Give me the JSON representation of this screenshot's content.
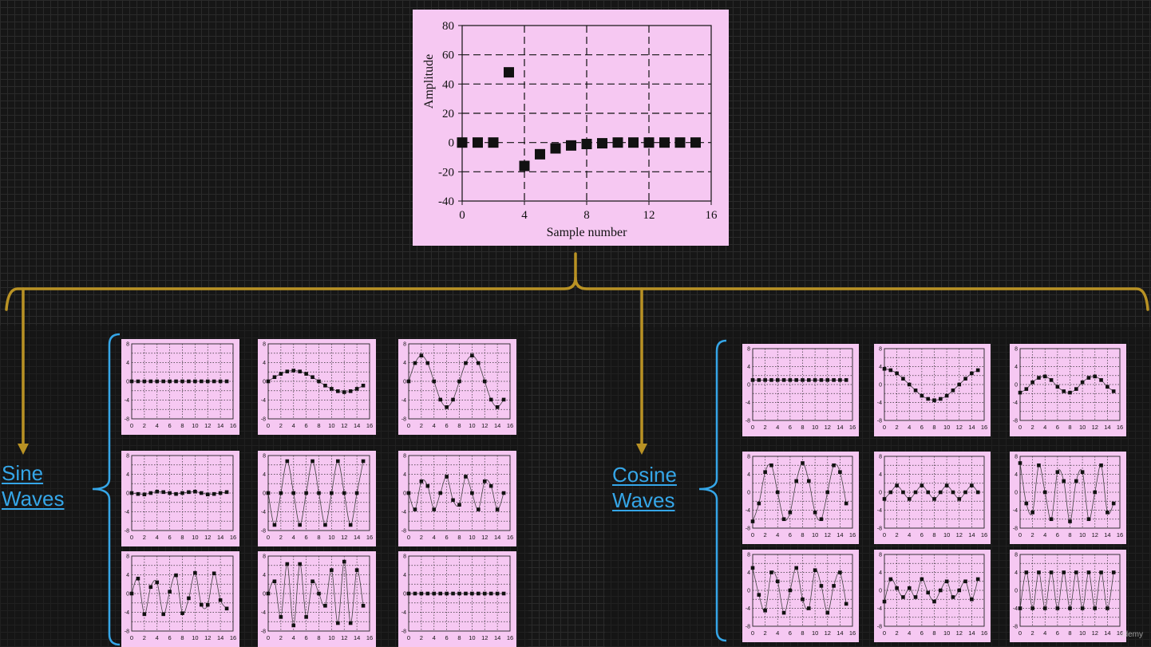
{
  "colors": {
    "panel_bg": "#f6c8f2",
    "bracket_gold": "#b99224",
    "bracket_blue": "#35a6e8",
    "label_blue": "#35a6e8",
    "marker": "#111111"
  },
  "labels": {
    "sine": [
      "Sine",
      "Waves"
    ],
    "cosine": [
      "Cosine",
      "Waves"
    ]
  },
  "watermark": "udemy",
  "chart_data": [
    {
      "id": "main",
      "type": "scatter",
      "xlabel": "Sample number",
      "ylabel": "Amplitude",
      "xlim": [
        0,
        16
      ],
      "ylim": [
        -40,
        80
      ],
      "xticks": [
        0,
        4,
        8,
        12,
        16
      ],
      "yticks": [
        -40,
        -20,
        0,
        20,
        40,
        60,
        80
      ],
      "grid": true,
      "x": [
        0,
        1,
        2,
        3,
        4,
        5,
        6,
        7,
        8,
        9,
        10,
        11,
        12,
        13,
        14,
        15
      ],
      "y": [
        0,
        0,
        0,
        48,
        -16,
        -8,
        -4,
        -2,
        -1,
        -0.5,
        0,
        0,
        0,
        0,
        0,
        0
      ]
    },
    {
      "id": "sine-0",
      "type": "scatter",
      "xlim": [
        0,
        16
      ],
      "ylim": [
        -8,
        8
      ],
      "xticks": [
        0,
        2,
        4,
        6,
        8,
        10,
        12,
        14,
        16
      ],
      "yticks": [
        -8,
        -4,
        0,
        4,
        8
      ],
      "x": [
        0,
        1,
        2,
        3,
        4,
        5,
        6,
        7,
        8,
        9,
        10,
        11,
        12,
        13,
        14,
        15
      ],
      "y": [
        0,
        0,
        0,
        0,
        0,
        0,
        0,
        0,
        0,
        0,
        0,
        0,
        0,
        0,
        0,
        0
      ]
    },
    {
      "id": "sine-1",
      "type": "scatter",
      "xlim": [
        0,
        16
      ],
      "ylim": [
        -8,
        8
      ],
      "xticks": [
        0,
        2,
        4,
        6,
        8,
        10,
        12,
        14,
        16
      ],
      "yticks": [
        -8,
        -4,
        0,
        4,
        8
      ],
      "x": [
        0,
        1,
        2,
        3,
        4,
        5,
        6,
        7,
        8,
        9,
        10,
        11,
        12,
        13,
        14,
        15
      ],
      "y": [
        0,
        0.9,
        1.6,
        2.1,
        2.3,
        2.1,
        1.6,
        0.9,
        0,
        -0.9,
        -1.6,
        -2.1,
        -2.3,
        -2.1,
        -1.6,
        -0.9
      ]
    },
    {
      "id": "sine-2",
      "type": "scatter",
      "xlim": [
        0,
        16
      ],
      "ylim": [
        -8,
        8
      ],
      "xticks": [
        0,
        2,
        4,
        6,
        8,
        10,
        12,
        14,
        16
      ],
      "yticks": [
        -8,
        -4,
        0,
        4,
        8
      ],
      "x": [
        0,
        1,
        2,
        3,
        4,
        5,
        6,
        7,
        8,
        9,
        10,
        11,
        12,
        13,
        14,
        15
      ],
      "y": [
        0,
        3.9,
        5.5,
        3.9,
        0,
        -3.9,
        -5.5,
        -3.9,
        0,
        3.9,
        5.5,
        3.9,
        0,
        -3.9,
        -5.5,
        -3.9
      ]
    },
    {
      "id": "sine-3",
      "type": "scatter",
      "xlim": [
        0,
        16
      ],
      "ylim": [
        -8,
        8
      ],
      "xticks": [
        0,
        2,
        4,
        6,
        8,
        10,
        12,
        14,
        16
      ],
      "yticks": [
        -8,
        -4,
        0,
        4,
        8
      ],
      "x": [
        0,
        1,
        2,
        3,
        4,
        5,
        6,
        7,
        8,
        9,
        10,
        11,
        12,
        13,
        14,
        15
      ],
      "y": [
        0,
        -0.2,
        -0.3,
        0,
        0.3,
        0.2,
        0,
        -0.2,
        0,
        0.2,
        0.3,
        0,
        -0.3,
        -0.2,
        0,
        0.2
      ]
    },
    {
      "id": "sine-4",
      "type": "scatter",
      "xlim": [
        0,
        16
      ],
      "ylim": [
        -8,
        8
      ],
      "xticks": [
        0,
        2,
        4,
        6,
        8,
        10,
        12,
        14,
        16
      ],
      "yticks": [
        -8,
        -4,
        0,
        4,
        8
      ],
      "x": [
        0,
        1,
        2,
        3,
        4,
        5,
        6,
        7,
        8,
        9,
        10,
        11,
        12,
        13,
        14,
        15
      ],
      "y": [
        0,
        -6.8,
        0,
        6.8,
        0,
        -6.8,
        0,
        6.8,
        0,
        -6.8,
        0,
        6.8,
        0,
        -6.8,
        0,
        6.8
      ]
    },
    {
      "id": "sine-5",
      "type": "scatter",
      "xlim": [
        0,
        16
      ],
      "ylim": [
        -8,
        8
      ],
      "xticks": [
        0,
        2,
        4,
        6,
        8,
        10,
        12,
        14,
        16
      ],
      "yticks": [
        -8,
        -4,
        0,
        4,
        8
      ],
      "x": [
        0,
        1,
        2,
        3,
        4,
        5,
        6,
        7,
        8,
        9,
        10,
        11,
        12,
        13,
        14,
        15
      ],
      "y": [
        0,
        -3.5,
        2.5,
        1.5,
        -3.5,
        0,
        3.5,
        -1.5,
        -2.5,
        3.5,
        0,
        -3.5,
        2.5,
        1.5,
        -3.5,
        0
      ]
    },
    {
      "id": "sine-6",
      "type": "scatter",
      "xlim": [
        0,
        16
      ],
      "ylim": [
        -8,
        8
      ],
      "xticks": [
        0,
        2,
        4,
        6,
        8,
        10,
        12,
        14,
        16
      ],
      "yticks": [
        -8,
        -4,
        0,
        4,
        8
      ],
      "x": [
        0,
        1,
        2,
        3,
        4,
        5,
        6,
        7,
        8,
        9,
        10,
        11,
        12,
        13,
        14,
        15
      ],
      "y": [
        0,
        3.2,
        -4.4,
        1.4,
        2.4,
        -4.4,
        0.4,
        3.9,
        -4.2,
        -1,
        4.4,
        -2.4,
        -2.4,
        4.3,
        -1.4,
        -3.2
      ]
    },
    {
      "id": "sine-7",
      "type": "scatter",
      "xlim": [
        0,
        16
      ],
      "ylim": [
        -8,
        8
      ],
      "xticks": [
        0,
        2,
        4,
        6,
        8,
        10,
        12,
        14,
        16
      ],
      "yticks": [
        -8,
        -4,
        0,
        4,
        8
      ],
      "x": [
        0,
        1,
        2,
        3,
        4,
        5,
        6,
        7,
        8,
        9,
        10,
        11,
        12,
        13,
        14,
        15
      ],
      "y": [
        0,
        2.6,
        -5,
        6.3,
        -6.8,
        6.3,
        -5,
        2.6,
        0,
        -2.6,
        5,
        -6.3,
        6.8,
        -6.3,
        5,
        -2.6
      ]
    },
    {
      "id": "sine-8",
      "type": "scatter",
      "xlim": [
        0,
        16
      ],
      "ylim": [
        -8,
        8
      ],
      "xticks": [
        0,
        2,
        4,
        6,
        8,
        10,
        12,
        14,
        16
      ],
      "yticks": [
        -8,
        -4,
        0,
        4,
        8
      ],
      "x": [
        0,
        1,
        2,
        3,
        4,
        5,
        6,
        7,
        8,
        9,
        10,
        11,
        12,
        13,
        14,
        15
      ],
      "y": [
        0,
        0,
        0,
        0,
        0,
        0,
        0,
        0,
        0,
        0,
        0,
        0,
        0,
        0,
        0,
        0
      ]
    },
    {
      "id": "cos-0",
      "type": "scatter",
      "xlim": [
        0,
        16
      ],
      "ylim": [
        -8,
        8
      ],
      "xticks": [
        0,
        2,
        4,
        6,
        8,
        10,
        12,
        14,
        16
      ],
      "yticks": [
        -8,
        -4,
        0,
        4,
        8
      ],
      "x": [
        0,
        1,
        2,
        3,
        4,
        5,
        6,
        7,
        8,
        9,
        10,
        11,
        12,
        13,
        14,
        15
      ],
      "y": [
        1,
        1,
        1,
        1,
        1,
        1,
        1,
        1,
        1,
        1,
        1,
        1,
        1,
        1,
        1,
        1
      ]
    },
    {
      "id": "cos-1",
      "type": "scatter",
      "xlim": [
        0,
        16
      ],
      "ylim": [
        -8,
        8
      ],
      "xticks": [
        0,
        2,
        4,
        6,
        8,
        10,
        12,
        14,
        16
      ],
      "yticks": [
        -8,
        -4,
        0,
        4,
        8
      ],
      "x": [
        0,
        1,
        2,
        3,
        4,
        5,
        6,
        7,
        8,
        9,
        10,
        11,
        12,
        13,
        14,
        15
      ],
      "y": [
        3.5,
        3.2,
        2.5,
        1.3,
        0,
        -1.3,
        -2.5,
        -3.2,
        -3.5,
        -3.2,
        -2.5,
        -1.3,
        0,
        1.3,
        2.5,
        3.2
      ]
    },
    {
      "id": "cos-2",
      "type": "scatter",
      "xlim": [
        0,
        16
      ],
      "ylim": [
        -8,
        8
      ],
      "xticks": [
        0,
        2,
        4,
        6,
        8,
        10,
        12,
        14,
        16
      ],
      "yticks": [
        -8,
        -4,
        0,
        4,
        8
      ],
      "x": [
        0,
        1,
        2,
        3,
        4,
        5,
        6,
        7,
        8,
        9,
        10,
        11,
        12,
        13,
        14,
        15
      ],
      "y": [
        -1.8,
        -1,
        0.5,
        1.5,
        1.8,
        1,
        -0.5,
        -1.5,
        -1.8,
        -1,
        0.5,
        1.5,
        1.8,
        1,
        -0.5,
        -1.5
      ]
    },
    {
      "id": "cos-3",
      "type": "scatter",
      "xlim": [
        0,
        16
      ],
      "ylim": [
        -8,
        8
      ],
      "xticks": [
        0,
        2,
        4,
        6,
        8,
        10,
        12,
        14,
        16
      ],
      "yticks": [
        -8,
        -4,
        0,
        4,
        8
      ],
      "x": [
        0,
        1,
        2,
        3,
        4,
        5,
        6,
        7,
        8,
        9,
        10,
        11,
        12,
        13,
        14,
        15
      ],
      "y": [
        -6.5,
        -2.5,
        4.5,
        6,
        0,
        -6,
        -4.5,
        2.5,
        6.5,
        2.5,
        -4.5,
        -6,
        0,
        6,
        4.5,
        -2.5
      ]
    },
    {
      "id": "cos-4",
      "type": "scatter",
      "xlim": [
        0,
        16
      ],
      "ylim": [
        -8,
        8
      ],
      "xticks": [
        0,
        2,
        4,
        6,
        8,
        10,
        12,
        14,
        16
      ],
      "yticks": [
        -8,
        -4,
        0,
        4,
        8
      ],
      "x": [
        0,
        1,
        2,
        3,
        4,
        5,
        6,
        7,
        8,
        9,
        10,
        11,
        12,
        13,
        14,
        15
      ],
      "y": [
        -1.5,
        0,
        1.5,
        0,
        -1.5,
        0,
        1.5,
        0,
        -1.5,
        0,
        1.5,
        0,
        -1.5,
        0,
        1.5,
        0
      ]
    },
    {
      "id": "cos-5",
      "type": "scatter",
      "xlim": [
        0,
        16
      ],
      "ylim": [
        -8,
        8
      ],
      "xticks": [
        0,
        2,
        4,
        6,
        8,
        10,
        12,
        14,
        16
      ],
      "yticks": [
        -8,
        -4,
        0,
        4,
        8
      ],
      "x": [
        0,
        1,
        2,
        3,
        4,
        5,
        6,
        7,
        8,
        9,
        10,
        11,
        12,
        13,
        14,
        15
      ],
      "y": [
        6.5,
        -2.5,
        -4.5,
        6,
        0,
        -6,
        4.5,
        2.5,
        -6.5,
        2.5,
        4.5,
        -6,
        0,
        6,
        -4.5,
        -2.5
      ]
    },
    {
      "id": "cos-6",
      "type": "scatter",
      "xlim": [
        0,
        16
      ],
      "ylim": [
        -8,
        8
      ],
      "xticks": [
        0,
        2,
        4,
        6,
        8,
        10,
        12,
        14,
        16
      ],
      "yticks": [
        -8,
        -4,
        0,
        4,
        8
      ],
      "x": [
        0,
        1,
        2,
        3,
        4,
        5,
        6,
        7,
        8,
        9,
        10,
        11,
        12,
        13,
        14,
        15
      ],
      "y": [
        5,
        -1,
        -4.5,
        4,
        2,
        -5,
        0,
        5,
        -2,
        -4,
        4.5,
        1,
        -5,
        1,
        4,
        -3
      ]
    },
    {
      "id": "cos-7",
      "type": "scatter",
      "xlim": [
        0,
        16
      ],
      "ylim": [
        -8,
        8
      ],
      "xticks": [
        0,
        2,
        4,
        6,
        8,
        10,
        12,
        14,
        16
      ],
      "yticks": [
        -8,
        -4,
        0,
        4,
        8
      ],
      "x": [
        0,
        1,
        2,
        3,
        4,
        5,
        6,
        7,
        8,
        9,
        10,
        11,
        12,
        13,
        14,
        15
      ],
      "y": [
        -2.5,
        2.5,
        0.5,
        -1.5,
        0.5,
        -1.5,
        2.5,
        -0.5,
        -2.5,
        0,
        2,
        -1.5,
        0,
        2,
        -2,
        2.5
      ]
    },
    {
      "id": "cos-8",
      "type": "scatter",
      "xlim": [
        0,
        16
      ],
      "ylim": [
        -8,
        8
      ],
      "xticks": [
        0,
        2,
        4,
        6,
        8,
        10,
        12,
        14,
        16
      ],
      "yticks": [
        -8,
        -4,
        0,
        4,
        8
      ],
      "x": [
        0,
        1,
        2,
        3,
        4,
        5,
        6,
        7,
        8,
        9,
        10,
        11,
        12,
        13,
        14,
        15
      ],
      "y": [
        -4,
        4,
        -4,
        4,
        -4,
        4,
        -4,
        4,
        -4,
        4,
        -4,
        4,
        -4,
        4,
        -4,
        4
      ]
    }
  ]
}
